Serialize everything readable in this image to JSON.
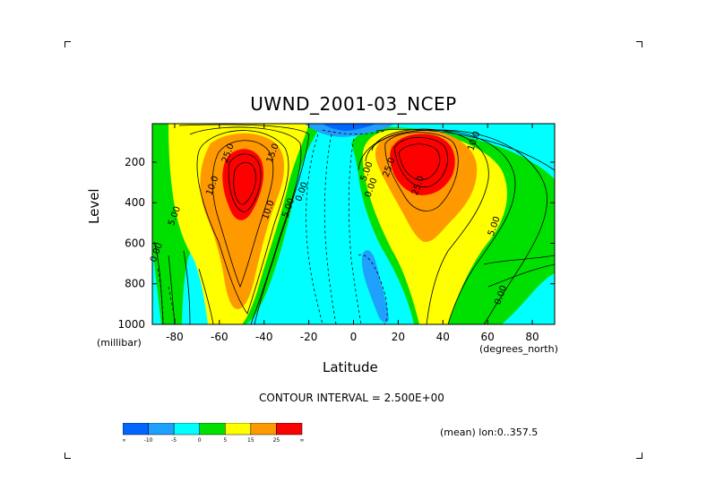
{
  "chart_data": {
    "type": "heatmap",
    "title": "UWND_2001-03_NCEP",
    "xlabel": "Latitude",
    "ylabel": "Level",
    "x_units": "(degrees_north)",
    "y_units": "(millibar)",
    "xlim": [
      -90,
      90
    ],
    "ylim": [
      1000,
      10
    ],
    "y_inverted": true,
    "x_ticks": [
      "-80",
      "-60",
      "-40",
      "-20",
      "0",
      "20",
      "40",
      "60",
      "80"
    ],
    "x_tick_values": [
      -80,
      -60,
      -40,
      -20,
      0,
      20,
      40,
      60,
      80
    ],
    "y_ticks": [
      "200",
      "400",
      "600",
      "800",
      "1000"
    ],
    "y_tick_values": [
      200,
      400,
      600,
      800,
      1000
    ],
    "contour_interval_text": "CONTOUR INTERVAL = 2.500E+00",
    "subtitle_note": "(mean) lon:0..357.5",
    "jets": [
      {
        "lat": -50,
        "level": 250,
        "max_value": 30
      },
      {
        "lat": 28,
        "level": 175,
        "max_value": 37
      }
    ],
    "contour_labels": [
      {
        "text": "25.0",
        "lat": -55,
        "level": 160
      },
      {
        "text": "15.0",
        "lat": -35,
        "level": 160
      },
      {
        "text": "10.0",
        "lat": -62,
        "level": 320
      },
      {
        "text": "10.0",
        "lat": -37,
        "level": 440
      },
      {
        "text": "5.00",
        "lat": -28,
        "level": 430
      },
      {
        "text": "0.00",
        "lat": -22,
        "level": 350
      },
      {
        "text": "5.00",
        "lat": -79,
        "level": 470
      },
      {
        "text": "0.00",
        "lat": -87,
        "level": 650
      },
      {
        "text": "5.00",
        "lat": 7,
        "level": 250
      },
      {
        "text": "0.00",
        "lat": 9,
        "level": 330
      },
      {
        "text": "25.0",
        "lat": 17,
        "level": 230
      },
      {
        "text": "25.0",
        "lat": 30,
        "level": 320
      },
      {
        "text": "10.0",
        "lat": 55,
        "level": 100
      },
      {
        "text": "5.00",
        "lat": 64,
        "level": 520
      },
      {
        "text": "0.00",
        "lat": 67,
        "level": 860
      }
    ],
    "colorbar": {
      "levels": [
        "-∞",
        "-10",
        "-5",
        "0",
        "5",
        "15",
        "25",
        "∞"
      ],
      "colors": [
        "#0066ff",
        "#1fa0ff",
        "#00ffff",
        "#00e000",
        "#ffff00",
        "#ff9900",
        "#ff0000"
      ]
    },
    "colors": {
      "deep_blue": "#0066ff",
      "blue": "#1fa0ff",
      "cyan": "#00ffff",
      "green": "#00e000",
      "yellow": "#ffff00",
      "orange": "#ff9900",
      "red": "#ff0000"
    }
  }
}
